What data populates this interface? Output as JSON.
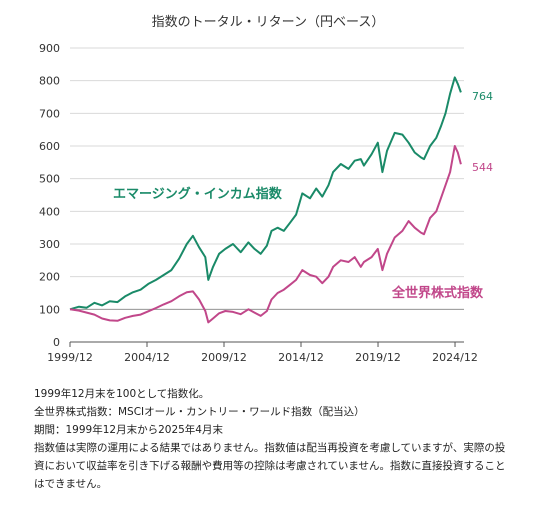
{
  "chart_data": {
    "type": "line",
    "title": "指数のトータル・リターン（円ベース）",
    "xlabel": "",
    "ylabel": "",
    "ylim": [
      0,
      900
    ],
    "yticks": [
      0,
      100,
      200,
      300,
      400,
      500,
      600,
      700,
      800,
      900
    ],
    "xlim": [
      1999.917,
      2025.5
    ],
    "xticks": [
      {
        "value": 1999.917,
        "label": "1999/12"
      },
      {
        "value": 2004.917,
        "label": "2004/12"
      },
      {
        "value": 2009.917,
        "label": "2009/12"
      },
      {
        "value": 2014.917,
        "label": "2014/12"
      },
      {
        "value": 2019.917,
        "label": "2019/12"
      },
      {
        "value": 2024.917,
        "label": "2024/12"
      }
    ],
    "grid": "horizontal",
    "baseline": 100,
    "series": [
      {
        "name": "エマージング・インカム指数",
        "color": "#1a8a68",
        "end_label": "764",
        "x": [
          1999.92,
          2000.5,
          2001.0,
          2001.5,
          2002.0,
          2002.5,
          2003.0,
          2003.5,
          2004.0,
          2004.5,
          2005.0,
          2005.5,
          2006.0,
          2006.5,
          2007.0,
          2007.5,
          2007.9,
          2008.3,
          2008.7,
          2008.9,
          2009.2,
          2009.6,
          2010.0,
          2010.5,
          2011.0,
          2011.5,
          2011.9,
          2012.3,
          2012.7,
          2013.0,
          2013.4,
          2013.8,
          2014.2,
          2014.6,
          2015.0,
          2015.5,
          2015.9,
          2016.3,
          2016.7,
          2017.0,
          2017.5,
          2018.0,
          2018.4,
          2018.8,
          2019.0,
          2019.5,
          2019.9,
          2020.2,
          2020.5,
          2021.0,
          2021.5,
          2021.9,
          2022.3,
          2022.7,
          2022.9,
          2023.3,
          2023.7,
          2024.0,
          2024.3,
          2024.6,
          2024.9,
          2025.1,
          2025.3
        ],
        "values": [
          100,
          108,
          105,
          120,
          112,
          125,
          122,
          140,
          152,
          160,
          178,
          190,
          205,
          220,
          255,
          300,
          325,
          290,
          260,
          190,
          230,
          270,
          285,
          300,
          275,
          305,
          285,
          270,
          295,
          340,
          350,
          340,
          365,
          390,
          455,
          440,
          470,
          445,
          480,
          520,
          545,
          530,
          555,
          560,
          540,
          575,
          610,
          520,
          585,
          640,
          635,
          610,
          580,
          565,
          560,
          600,
          625,
          660,
          700,
          760,
          810,
          790,
          764
        ]
      },
      {
        "name": "全世界株式指数",
        "color": "#c1478a",
        "end_label": "544",
        "x": [
          1999.92,
          2000.5,
          2001.0,
          2001.5,
          2002.0,
          2002.5,
          2003.0,
          2003.5,
          2004.0,
          2004.5,
          2005.0,
          2005.5,
          2006.0,
          2006.5,
          2007.0,
          2007.5,
          2007.9,
          2008.3,
          2008.7,
          2008.9,
          2009.2,
          2009.6,
          2010.0,
          2010.5,
          2011.0,
          2011.5,
          2011.9,
          2012.3,
          2012.7,
          2013.0,
          2013.4,
          2013.8,
          2014.2,
          2014.6,
          2015.0,
          2015.5,
          2015.9,
          2016.3,
          2016.7,
          2017.0,
          2017.5,
          2018.0,
          2018.4,
          2018.8,
          2019.0,
          2019.5,
          2019.9,
          2020.2,
          2020.5,
          2021.0,
          2021.5,
          2021.9,
          2022.3,
          2022.7,
          2022.9,
          2023.3,
          2023.7,
          2024.0,
          2024.3,
          2024.6,
          2024.9,
          2025.1,
          2025.3
        ],
        "values": [
          100,
          96,
          90,
          84,
          72,
          66,
          65,
          74,
          80,
          84,
          94,
          104,
          115,
          125,
          140,
          152,
          155,
          130,
          95,
          60,
          72,
          88,
          95,
          92,
          85,
          100,
          90,
          80,
          95,
          130,
          150,
          160,
          175,
          190,
          220,
          205,
          200,
          180,
          200,
          230,
          250,
          245,
          260,
          230,
          245,
          260,
          285,
          220,
          270,
          320,
          340,
          370,
          350,
          335,
          330,
          380,
          400,
          440,
          480,
          520,
          600,
          580,
          544
        ]
      }
    ]
  },
  "notes": {
    "line1": "1999年12月末を100として指数化。",
    "line2": "全世界株式指数：MSCIオール・カントリー・ワールド指数（配当込）",
    "line3": "期間：1999年12月末から2025年4月末",
    "line4": "指数値は実際の運用による結果ではありません。指数値は配当再投資を考慮していますが、実際の投資において収益率を引き下げる報酬や費用等の控除は考慮されていません。指数に直接投資することはできません。"
  }
}
